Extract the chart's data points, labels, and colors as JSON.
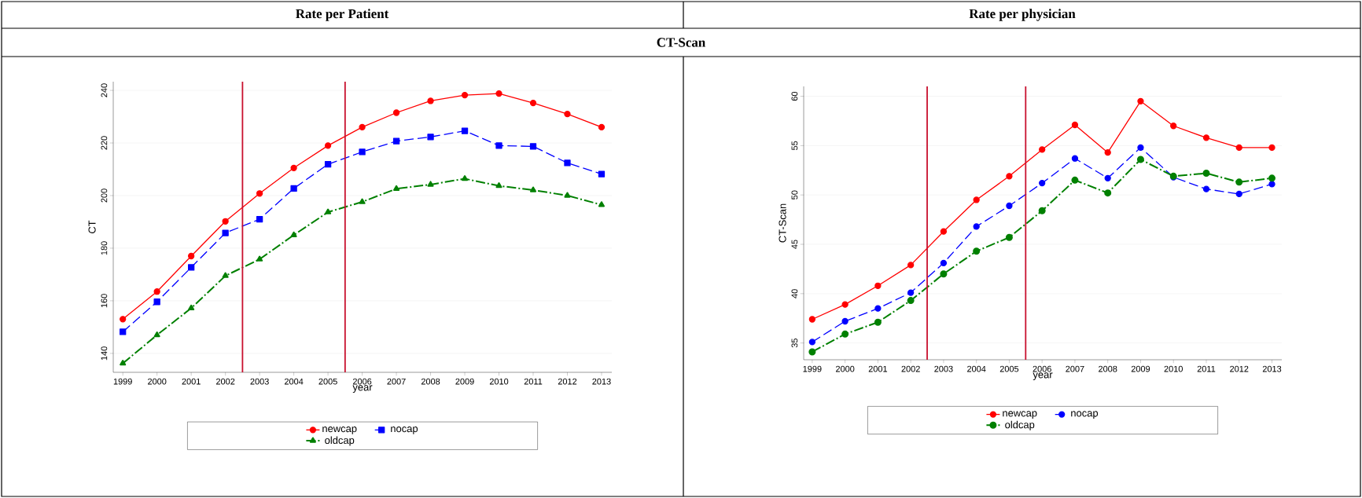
{
  "chart_data": [
    {
      "type": "line",
      "title": "Rate per Patient",
      "annotations": [
        "CT-Scan"
      ],
      "xlabel": "year",
      "ylabel": "CT",
      "x": [
        1999,
        2000,
        2001,
        2002,
        2003,
        2004,
        2005,
        2006,
        2007,
        2008,
        2009,
        2010,
        2011,
        2012,
        2013
      ],
      "series": [
        {
          "name": "newcap",
          "color": "#ff0000",
          "marker": "circle",
          "line_style": "solid",
          "values": [
            153,
            163.5,
            177,
            190.2,
            200.8,
            210.5,
            219,
            226,
            231.5,
            236,
            238.2,
            238.8,
            235.2,
            231,
            226
          ]
        },
        {
          "name": "nocap",
          "color": "#0000ff",
          "marker": "square",
          "line_style": "dashed",
          "values": [
            148.2,
            159.6,
            172.7,
            185.8,
            191,
            202.7,
            211.9,
            216.6,
            220.7,
            222.3,
            224.6,
            219,
            218.7,
            212.4,
            208.2
          ]
        },
        {
          "name": "oldcap",
          "color": "#008000",
          "marker": "triangle",
          "line_style": "dashed",
          "values": [
            136.2,
            147,
            157.2,
            169.5,
            175.8,
            185,
            193.7,
            197.6,
            202.6,
            204.2,
            206.4,
            203.7,
            202.1,
            200,
            196.5
          ]
        }
      ],
      "xlim": [
        1998.72,
        2013.3
      ],
      "ylim": [
        132.8,
        243.3
      ],
      "xticks": [
        1999,
        2000,
        2001,
        2002,
        2003,
        2004,
        2005,
        2006,
        2007,
        2008,
        2009,
        2010,
        2011,
        2012,
        2013
      ],
      "yticks": [
        140,
        160,
        180,
        200,
        220,
        240
      ],
      "ref_lines": [
        {
          "axis": "x",
          "value": 2002.5,
          "color": "#c8102e"
        },
        {
          "axis": "x",
          "value": 2005.5,
          "color": "#c8102e"
        }
      ],
      "grid": "y",
      "legend": "bottom"
    },
    {
      "type": "line",
      "title": "Rate per physician",
      "xlabel": "year",
      "ylabel": "CT-Scan",
      "x": [
        1999,
        2000,
        2001,
        2002,
        2003,
        2004,
        2005,
        2006,
        2007,
        2008,
        2009,
        2010,
        2011,
        2012,
        2013
      ],
      "series": [
        {
          "name": "newcap",
          "color": "#ff0000",
          "marker": "circle",
          "line_style": "solid",
          "values": [
            37.4,
            38.9,
            40.8,
            42.9,
            46.3,
            49.5,
            51.9,
            54.6,
            57.1,
            54.3,
            59.5,
            57.0,
            55.8,
            54.8,
            54.8
          ]
        },
        {
          "name": "nocap",
          "color": "#0000ff",
          "marker": "circle",
          "line_style": "dashed",
          "values": [
            35.1,
            37.2,
            38.5,
            40.1,
            43.1,
            46.8,
            48.9,
            51.2,
            53.7,
            51.7,
            54.8,
            51.8,
            50.6,
            50.1,
            51.1
          ]
        },
        {
          "name": "oldcap",
          "color": "#008000",
          "marker": "circle",
          "line_style": "dashed",
          "values": [
            34.1,
            35.9,
            37.1,
            39.3,
            42.0,
            44.3,
            45.7,
            48.4,
            51.5,
            50.2,
            53.6,
            51.9,
            52.2,
            51.3,
            51.7
          ]
        }
      ],
      "xlim": [
        1998.74,
        2013.3
      ],
      "ylim": [
        33.3,
        61
      ],
      "xticks": [
        1999,
        2000,
        2001,
        2002,
        2003,
        2004,
        2005,
        2006,
        2007,
        2008,
        2009,
        2010,
        2011,
        2012,
        2013
      ],
      "yticks": [
        35,
        40,
        45,
        50,
        55,
        60
      ],
      "ref_lines": [
        {
          "axis": "x",
          "value": 2002.5,
          "color": "#c8102e"
        },
        {
          "axis": "x",
          "value": 2005.5,
          "color": "#c8102e"
        }
      ],
      "grid": "y",
      "legend": "bottom"
    }
  ]
}
